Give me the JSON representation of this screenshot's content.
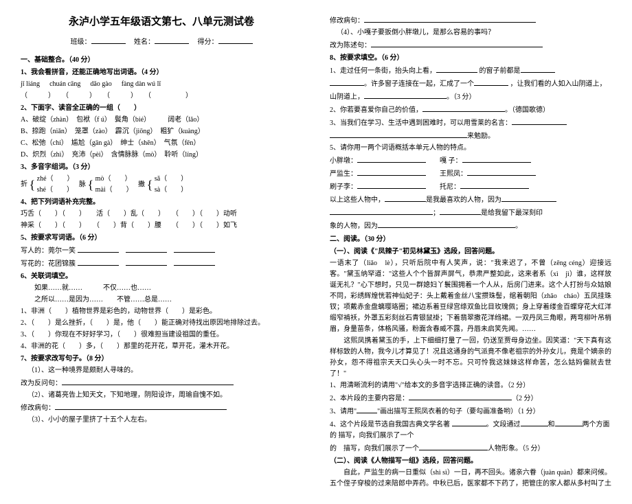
{
  "title": "永泸小学五年级语文第七、八单元测试卷",
  "meta": {
    "class_label": "班级：",
    "name_label": "姓名：",
    "score_label": "得分："
  },
  "left": {
    "sectA": "一、基础整合。（40 分）",
    "q1h": "1、我会看拼音，还能正确地写出词语。（4 分）",
    "q1_py": [
      "jǐ liáng",
      "chuán cāng",
      "dǎo gào",
      "fàng dàn wú lǐ"
    ],
    "q2h": "2、下面字、读音全正确的一组（　　）",
    "q2a": "A、破绽（zhàn）　包袱（f ú）　鬓角（bié）　　　阔老（lǎo）",
    "q2b": "B、捺跑（niǎn）　笼罩（zào）　霹沉（jiōng）　粗犷（kuàng）",
    "q2c": "C、松弛（chí）　尴尬（gān gà）　绅士（shēn）　气氛（fēn）",
    "q2d": "D、炽烈（zhì）　充沛（pèi）　含情脉脉（mò）　聆听（líng）",
    "q3h": "3、多音字组词。（3 分）",
    "q3a1": "zhé（　　）",
    "q3a2": "shé（　　）",
    "q3b1": "mò（　　）",
    "q3b2": "mài（　　）",
    "q3c1": "sǎ（　　）",
    "q3c2": "sà（　　）",
    "q4h": "4、把下列词语补充完整。",
    "q4a": "巧舌（　　）（　　）　　活（　　）乱（　　）　　（　　）（　　）动听",
    "q4b": "神采（　　）（　　）　　（　　）背（　　）腰　　（　　）（　　）如飞",
    "q5h": "5、按要求写词语。（6 分）",
    "q5a": "写人的：莞尔一笑  ",
    "q5b": "写花的：花团锦簇  ",
    "q6h": "6、关联词填空。",
    "q6a": "如果……就……　　　不仅……也……",
    "q6b": "之所以……是因为……　　不管……总是……",
    "q6l1": "1、非洲（　　）植物世界是彩色的，动物世界（　　）是彩色。",
    "q6l2": "2、（　　）是么挫折，（　　）是，他（　　）能正确对待找出原因地排除过去。",
    "q6l3": "3、（　　）你现在不好好学习，（　　）很难担当建设祖国的重任。",
    "q6l4": "4、非洲的花（　　）多，（　　）那里的花开花，草开花，灌木开花。",
    "q7h": "7、按要求改写句子。（8 分）",
    "q7_1": "（1）、这一种境界是颇耐人寻味的。",
    "q7_1r": "改为反问句：",
    "q7_2": "（2）、诸葛亮告上知天文，下知地理，阴阳设诈，周瑜自愧不如。",
    "q7_2r": "修改病句：",
    "q7_3": "（3）、小小的屋子里挤了十五个人左右。"
  },
  "right": {
    "r1": "修改病句：",
    "r2": "（4）、小嘎子要扳倒小胖墩儿，是那么容易的事吗？",
    "r3": "改为陈述句：",
    "q8h": "8、按要求填空。（6 分）",
    "q8_1": "1、走过任何一条街，抬头向上看，",
    "q8_1b": "的窗子前都是",
    "q8_1c": "。许多窗子连接在一起，汇成了一个",
    "q8_1d": "，让我们看的人如入山阴道上，",
    "q8_1e": "。（3 分）",
    "q8_2": "2、你若要喜爱你自己的价值，",
    "q8_2b": "。（德国歌德）",
    "q8_3": "3、当我们在学习、生活中遇到困难时，可以用雪莱的名言：",
    "q8_3b": "来勉励。",
    "q8_5h": "5、请你用一两个词语概括本单元人物的特点。",
    "p1": "小胖墩：",
    "p2": "嘎 子：",
    "p3": "严监生：",
    "p4": "王熙凤：",
    "p5": "刷子李：",
    "p6": "托尼：",
    "fav1": "以上这些人物中，",
    "fav2": "是我最喜欢的人物，因为",
    "fav3": "是给我留下最深刻印",
    "fav4": "象的人物，因为",
    "sectB": "二、阅读。（30 分）",
    "sBh": "（一）、阅读《\"凤辣子\"初见林黛玉》选段，回答问题。",
    "body1": "一语末了（liǎo　lè），只听后院中有人笑声，说：\"我来迟了，不曾（zēng céng）迎接远客。\"黛玉纳罕道：\"这些人个个皆屏声屏气，恭肃严整如此，这来者系（xì　jì）谁，这样放诞无礼？\"心下想时，只见一群媳妇丫鬟围拥着一个人从，后房门进来。这个人打扮与众姑娘不同，彩绣辉煌恍若神仙妃子：头上戴着金丝八宝攒珠髻，绾着朝阳（zhāo　cháo）五凤挂珠钗；项戴赤金盘螭璎珞圈；裙边系着豆绿宫绦双鱼比目玫瑰佩；身上穿着缕金百蝶穿花大红洋缎窄褃袄，外罩五彩刻丝石青银鼠褂；下着翡翠撒花洋绉裙。一双丹凤三角眼，两弯柳叶吊梢眉，身量苗条，体格风骚，粉面含春威不露，丹唇未启笑先闻。……",
    "body2": "　　这熙凤携着黛玉的手，上下细细打量了一回，仍送至贾母身边坐。因笑道：\"天下真有这样标致的人物，我今儿才算见了！况且这通身的气派竟不像老祖宗的外孙女儿，竟是个嫡亲的孙女，怨不得祖宗天天口头心头一时不忘。只可怜我这妹妹这样命苦，怎么姑妈偏就去世了！\"",
    "qb1": "1、用清晰流利的请用\"√\"给本文的多音字选择正确的读音。（2 分）",
    "qb2": "2、本片段的主要内容是：",
    "qb2p": "（2 分）",
    "qb3": "3、请用\"",
    "qb3b": "\"画出描写王熙凤衣着的句子（要勾画准备哟）（1 分）",
    "qb4": "4、这个片段是节选自我国古典文学名著 ",
    "qb4b": "。文段通过",
    "qb4c": "和",
    "qb4d": "两个方面的 描写，向我们展示了一个",
    "qb4e": "人物形象。（5 分）",
    "sCh": "（二）、阅读《人物描写一组》选段，回答问题。",
    "body3": "　　自此，严监生的病一日重似（shì  sì）一日，再不回头。诸亲六眷（juàn quàn）都来问候。五个侄子穿梭的过来陪郎中弄药。中秋已后，医家都不下药了，把管庄的家人都从多村叫了土"
  }
}
